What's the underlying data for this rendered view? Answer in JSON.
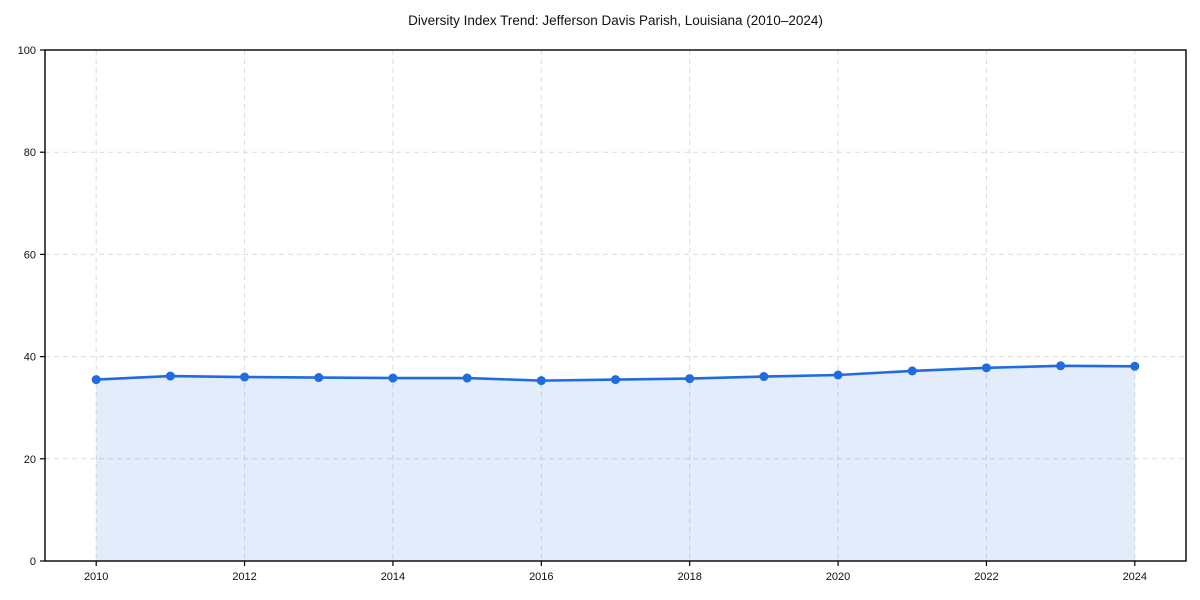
{
  "chart_data": {
    "type": "line",
    "title": "Diversity Index Trend: Jefferson Davis Parish, Louisiana (2010–2024)",
    "xlabel": "",
    "ylabel": "",
    "x": [
      2010,
      2011,
      2012,
      2013,
      2014,
      2015,
      2016,
      2017,
      2018,
      2019,
      2020,
      2021,
      2022,
      2023,
      2024
    ],
    "series": [
      {
        "name": "Diversity Index",
        "values": [
          35.5,
          36.2,
          36.0,
          35.9,
          35.8,
          35.8,
          35.3,
          35.5,
          35.7,
          36.1,
          36.4,
          37.2,
          37.8,
          38.2,
          38.1
        ]
      }
    ],
    "xticks": [
      2010,
      2012,
      2014,
      2016,
      2018,
      2020,
      2022,
      2024
    ],
    "yticks": [
      0,
      20,
      40,
      60,
      80,
      100
    ],
    "xlim": [
      2009.31,
      2024.69
    ],
    "ylim": [
      0,
      100
    ],
    "grid": true,
    "grid_style": "dashed",
    "legend_position": "none",
    "line_color": "#1f6be0",
    "marker_color": "#1f6be0",
    "fill_color": "rgba(31, 107, 224, 0.13)",
    "marker": "circle"
  }
}
